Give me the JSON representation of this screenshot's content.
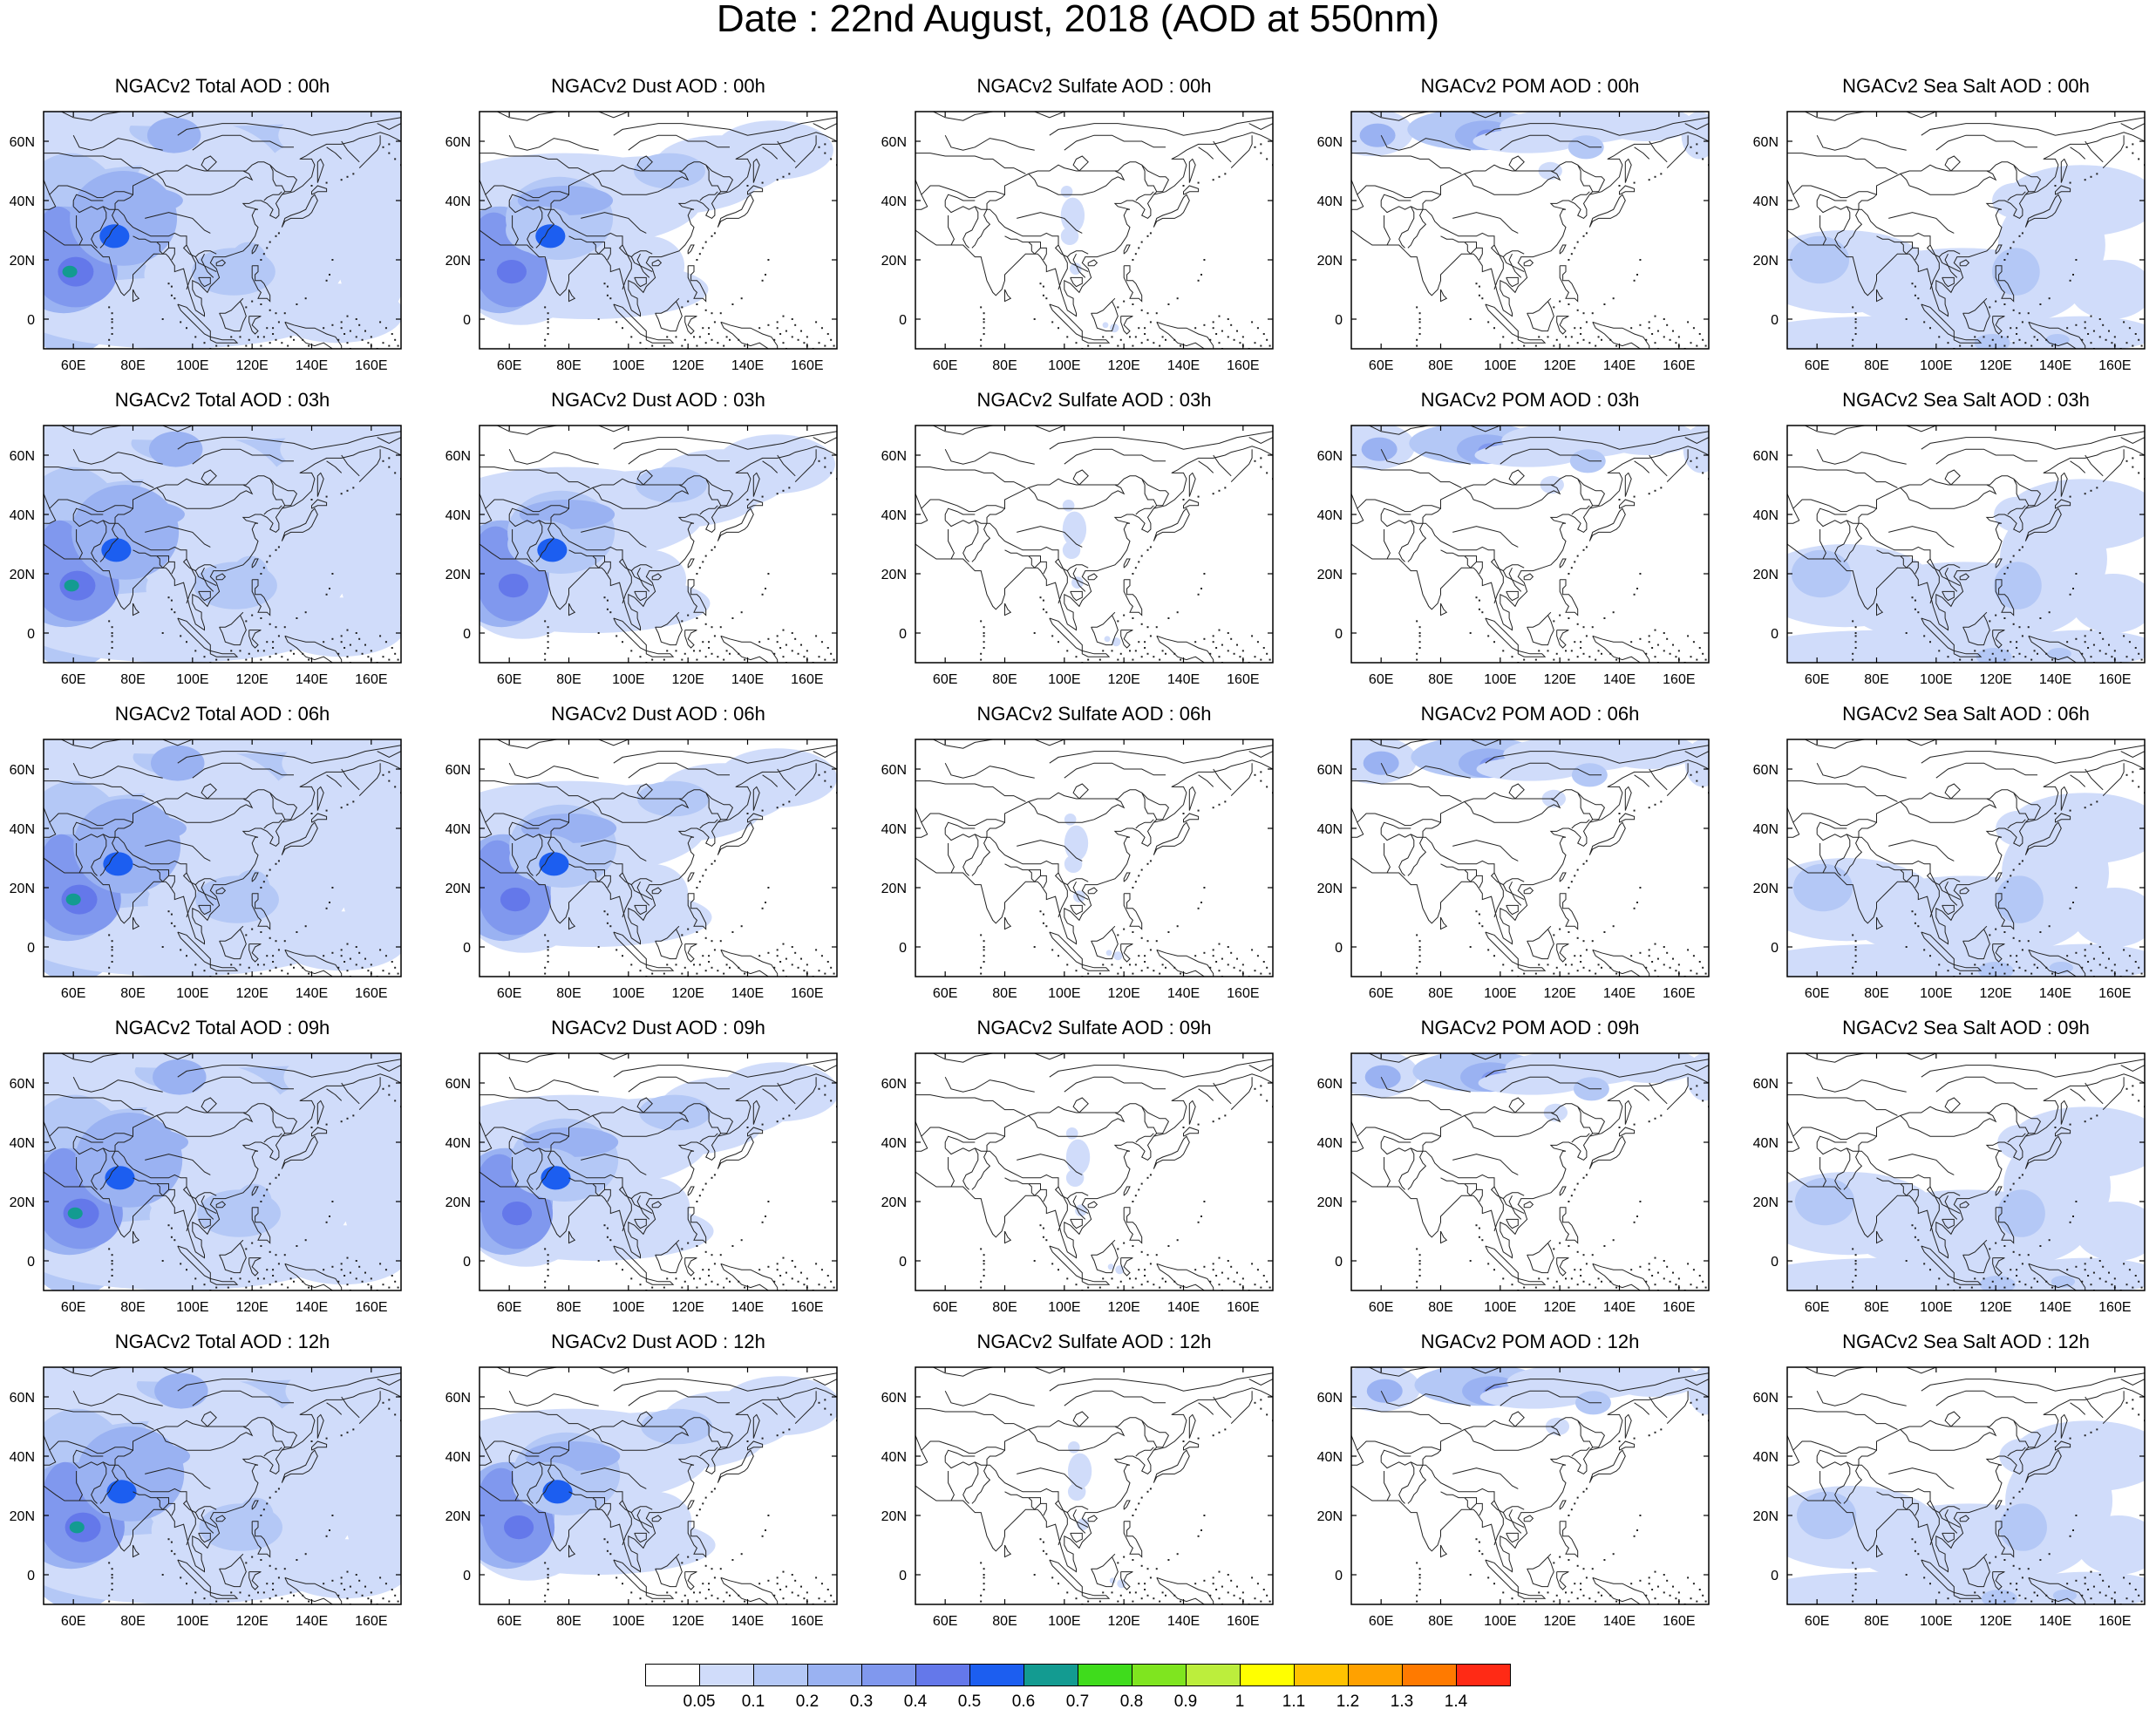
{
  "title": "Date : 22nd August, 2018 (AOD at 550nm)",
  "lon_range": [
    50,
    170
  ],
  "lat_range": [
    -10,
    70
  ],
  "x_ticks": [
    {
      "value": 60,
      "label": "60E"
    },
    {
      "value": 80,
      "label": "80E"
    },
    {
      "value": 100,
      "label": "100E"
    },
    {
      "value": 120,
      "label": "120E"
    },
    {
      "value": 140,
      "label": "140E"
    },
    {
      "value": 160,
      "label": "160E"
    }
  ],
  "y_ticks": [
    {
      "value": 60,
      "label": "60N"
    },
    {
      "value": 40,
      "label": "40N"
    },
    {
      "value": 20,
      "label": "20N"
    },
    {
      "value": 0,
      "label": "0"
    }
  ],
  "species": [
    {
      "id": "total",
      "titles": [
        "NGACv2 Total AOD : 00h",
        "NGACv2 Total AOD : 03h",
        "NGACv2 Total AOD : 06h",
        "NGACv2 Total AOD : 09h",
        "NGACv2 Total AOD  : 12h"
      ]
    },
    {
      "id": "dust",
      "titles": [
        "NGACv2 Dust AOD : 00h",
        "NGACv2 Dust AOD : 03h",
        "NGACv2 Dust AOD : 06h",
        "NGACv2 Dust AOD : 09h",
        "NGACv2 Dust AOD : 12h"
      ]
    },
    {
      "id": "sulfate",
      "titles": [
        "NGACv2 Sulfate AOD : 00h",
        "NGACv2 Sulfate AOD : 03h",
        "NGACv2 Sulfate AOD : 06h",
        "NGACv2 Sulfate AOD : 09h",
        "NGACv2 Sulfate AOD : 12h"
      ]
    },
    {
      "id": "pom",
      "titles": [
        "NGACv2 POM AOD : 00h",
        "NGACv2 POM AOD : 03h",
        "NGACv2 POM AOD : 06h",
        "NGACv2 POM AOD : 09h",
        "NGACv2 POM  AOD : 12h"
      ]
    },
    {
      "id": "seasalt",
      "titles": [
        "NGACv2 Sea Salt AOD : 00h",
        "NGACv2 Sea Salt AOD : 03h",
        "NGACv2 Sea Salt AOD : 06h",
        "NGACv2 Sea Salt  AOD : 09h",
        "NGACv2 Sea Salt  AOD : 12h"
      ]
    }
  ],
  "colorbar": {
    "labels": [
      "0.05",
      "0.1",
      "0.2",
      "0.3",
      "0.4",
      "0.5",
      "0.6",
      "0.7",
      "0.8",
      "0.9",
      "1",
      "1.1",
      "1.2",
      "1.3",
      "1.4"
    ],
    "colors": [
      "#ffffff",
      "#d0dcfa",
      "#b4c8f6",
      "#9ab2f2",
      "#8098ee",
      "#6478ea",
      "#1c5ef0",
      "#139b91",
      "#3fdc1c",
      "#7fe51f",
      "#bcee3c",
      "#ffff00",
      "#ffc200",
      "#ffa100",
      "#ff7a00",
      "#ff2a15"
    ]
  }
}
